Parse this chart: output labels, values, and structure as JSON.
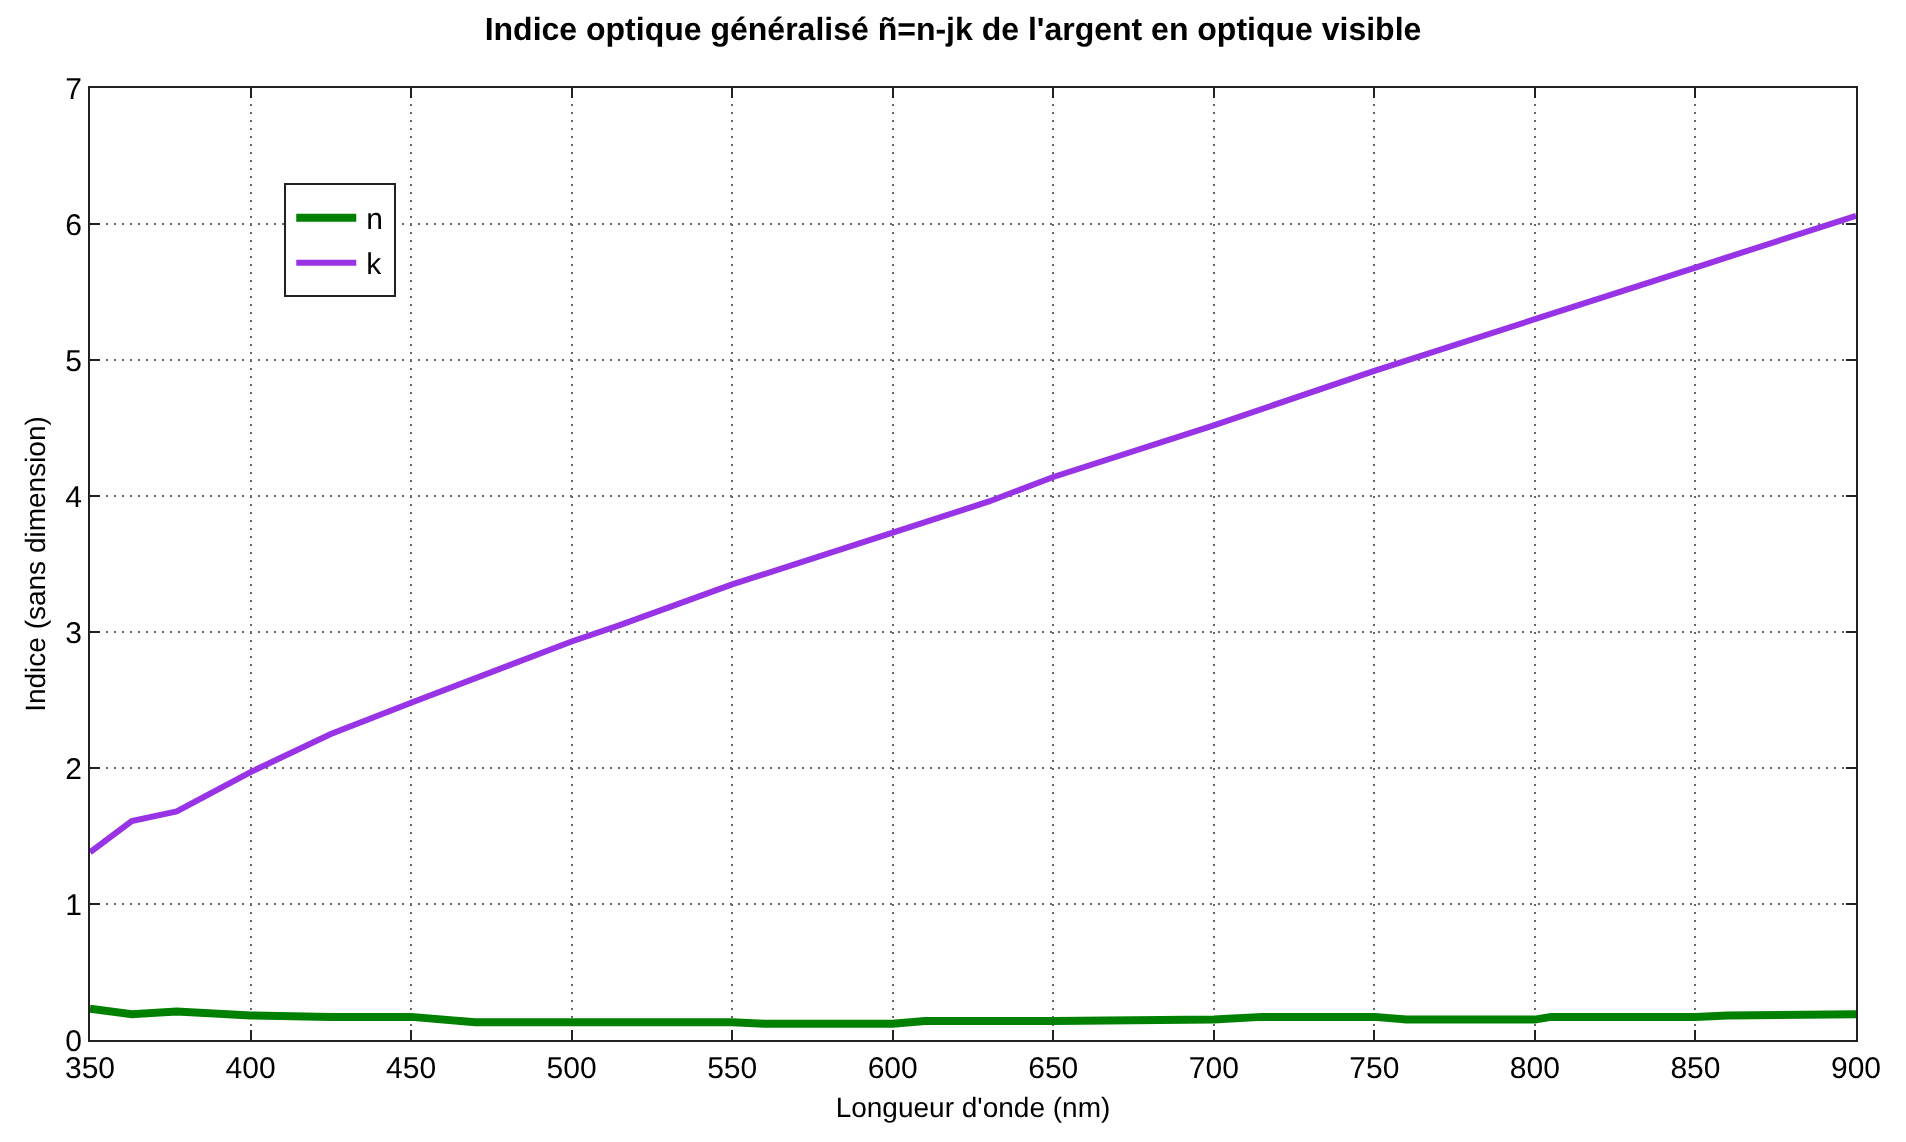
{
  "chart_data": {
    "type": "line",
    "title": "Indice optique généralisé ñ=n-jk de l'argent en optique visible",
    "xlabel": "Longueur d'onde (nm)",
    "ylabel": "Indice (sans dimension)",
    "series": [
      {
        "name": "n",
        "color": "#008000",
        "x": [
          350,
          363,
          377,
          400,
          425,
          450,
          470,
          500,
          550,
          560,
          600,
          610,
          650,
          700,
          715,
          750,
          760,
          800,
          805,
          850,
          860,
          900
        ],
        "values": [
          0.23,
          0.19,
          0.21,
          0.18,
          0.17,
          0.17,
          0.13,
          0.13,
          0.13,
          0.12,
          0.12,
          0.14,
          0.14,
          0.15,
          0.17,
          0.17,
          0.15,
          0.15,
          0.17,
          0.17,
          0.18,
          0.19
        ]
      },
      {
        "name": "k",
        "color": "#9933e6",
        "x": [
          350,
          363,
          377,
          400,
          425,
          450,
          500,
          515,
          550,
          600,
          630,
          650,
          700,
          750,
          800,
          850,
          900
        ],
        "values": [
          1.38,
          1.61,
          1.68,
          1.97,
          2.25,
          2.48,
          2.93,
          3.05,
          3.35,
          3.73,
          3.96,
          4.14,
          4.52,
          4.92,
          5.3,
          5.68,
          6.06
        ]
      }
    ],
    "xlim": [
      350,
      900
    ],
    "xticks": [
      350,
      400,
      450,
      500,
      550,
      600,
      650,
      700,
      750,
      800,
      850,
      900
    ],
    "ylim": [
      0,
      7
    ],
    "yticks": [
      0,
      1,
      2,
      3,
      4,
      5,
      6,
      7
    ],
    "grid": true,
    "legend": "top left"
  }
}
